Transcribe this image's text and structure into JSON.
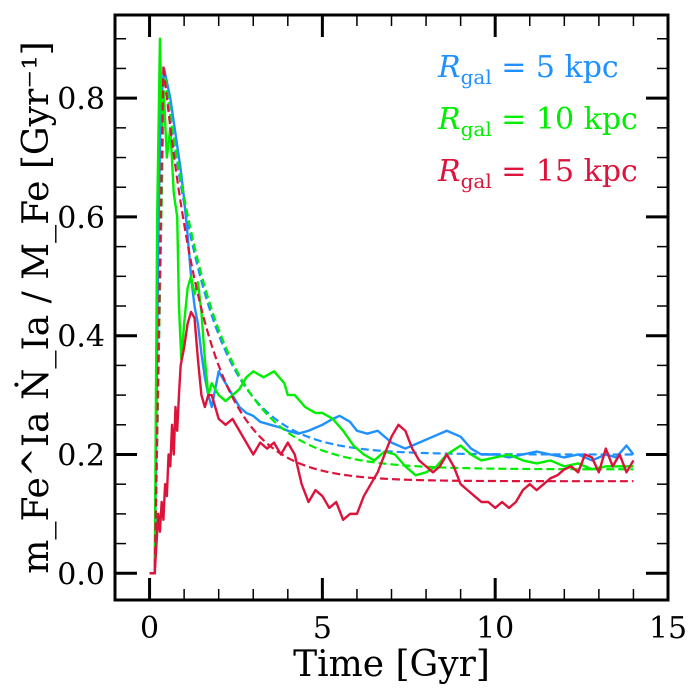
{
  "chart_data": {
    "type": "line",
    "xlabel": "Time [Gyr]",
    "ylabel": "m_Fe^Ia Ṅ_Ia / M_Fe [Gyr⁻¹]",
    "xlim": [
      -1,
      15
    ],
    "ylim": [
      -0.045,
      0.94
    ],
    "x_ticks": [
      0,
      5,
      10,
      15
    ],
    "x_tick_labels": [
      "0",
      "5",
      "10",
      "15"
    ],
    "y_ticks": [
      0.0,
      0.2,
      0.4,
      0.6,
      0.8
    ],
    "y_tick_labels": [
      "0.0",
      "0.2",
      "0.4",
      "0.6",
      "0.8"
    ],
    "x_minor_step": 1,
    "y_minor_step": 0.05,
    "legend_position": "top-right",
    "series": [
      {
        "name": "R_gal = 5 kpc",
        "legend": {
          "symbol": "R",
          "subscript": "gal",
          "rest": " = 5 kpc"
        },
        "color": "#1e90ff",
        "model": {
          "onset": 0.15,
          "peak_t": 0.42,
          "peak": 0.85,
          "tau": 1.35,
          "floor": 0.2
        },
        "solid": [
          [
            0,
            0
          ],
          [
            0.15,
            0
          ],
          [
            0.25,
            0.55
          ],
          [
            0.32,
            0.78
          ],
          [
            0.42,
            0.85
          ],
          [
            0.6,
            0.8
          ],
          [
            0.8,
            0.72
          ],
          [
            0.9,
            0.68
          ],
          [
            1.0,
            0.63
          ],
          [
            1.1,
            0.57
          ],
          [
            1.2,
            0.5
          ],
          [
            1.3,
            0.45
          ],
          [
            1.4,
            0.42
          ],
          [
            1.5,
            0.37
          ],
          [
            1.6,
            0.33
          ],
          [
            1.7,
            0.3
          ],
          [
            1.8,
            0.28
          ],
          [
            2.0,
            0.34
          ],
          [
            2.2,
            0.32
          ],
          [
            2.4,
            0.3
          ],
          [
            2.6,
            0.28
          ],
          [
            2.8,
            0.27
          ],
          [
            3.0,
            0.265
          ],
          [
            3.2,
            0.255
          ],
          [
            3.5,
            0.25
          ],
          [
            3.8,
            0.245
          ],
          [
            4.0,
            0.24
          ],
          [
            4.3,
            0.235
          ],
          [
            4.6,
            0.24
          ],
          [
            5.0,
            0.25
          ],
          [
            5.3,
            0.26
          ],
          [
            5.5,
            0.265
          ],
          [
            5.8,
            0.255
          ],
          [
            6.0,
            0.24
          ],
          [
            6.3,
            0.235
          ],
          [
            6.6,
            0.24
          ],
          [
            7.0,
            0.22
          ],
          [
            7.4,
            0.21
          ],
          [
            7.8,
            0.22
          ],
          [
            8.2,
            0.23
          ],
          [
            8.6,
            0.24
          ],
          [
            8.8,
            0.235
          ],
          [
            9.0,
            0.23
          ],
          [
            9.3,
            0.21
          ],
          [
            9.6,
            0.2
          ],
          [
            10.0,
            0.2
          ],
          [
            10.4,
            0.195
          ],
          [
            10.8,
            0.2
          ],
          [
            11.2,
            0.205
          ],
          [
            11.6,
            0.2
          ],
          [
            12.0,
            0.195
          ],
          [
            12.4,
            0.2
          ],
          [
            12.8,
            0.19
          ],
          [
            13.2,
            0.2
          ],
          [
            13.5,
            0.195
          ],
          [
            13.8,
            0.215
          ],
          [
            14.0,
            0.2
          ]
        ]
      },
      {
        "name": "R_gal = 10 kpc",
        "legend": {
          "symbol": "R",
          "subscript": "gal",
          "rest": " = 10 kpc"
        },
        "color": "#00ee00",
        "model": {
          "onset": 0.15,
          "peak_t": 0.42,
          "peak": 0.85,
          "tau": 1.5,
          "floor": 0.175
        },
        "solid": [
          [
            0,
            0
          ],
          [
            0.15,
            0
          ],
          [
            0.22,
            0.6
          ],
          [
            0.3,
            0.9
          ],
          [
            0.36,
            0.75
          ],
          [
            0.42,
            0.8
          ],
          [
            0.5,
            0.7
          ],
          [
            0.6,
            0.75
          ],
          [
            0.7,
            0.64
          ],
          [
            0.8,
            0.6
          ],
          [
            0.85,
            0.45
          ],
          [
            0.92,
            0.36
          ],
          [
            1.0,
            0.42
          ],
          [
            1.1,
            0.48
          ],
          [
            1.2,
            0.5
          ],
          [
            1.3,
            0.47
          ],
          [
            1.4,
            0.49
          ],
          [
            1.5,
            0.44
          ],
          [
            1.6,
            0.36
          ],
          [
            1.7,
            0.3
          ],
          [
            1.8,
            0.32
          ],
          [
            2.0,
            0.3
          ],
          [
            2.2,
            0.29
          ],
          [
            2.4,
            0.3
          ],
          [
            2.6,
            0.31
          ],
          [
            2.8,
            0.33
          ],
          [
            3.0,
            0.34
          ],
          [
            3.3,
            0.33
          ],
          [
            3.6,
            0.34
          ],
          [
            3.9,
            0.32
          ],
          [
            4.0,
            0.3
          ],
          [
            4.2,
            0.3
          ],
          [
            4.5,
            0.28
          ],
          [
            4.8,
            0.27
          ],
          [
            5.0,
            0.27
          ],
          [
            5.3,
            0.26
          ],
          [
            5.6,
            0.24
          ],
          [
            5.9,
            0.215
          ],
          [
            6.2,
            0.2
          ],
          [
            6.5,
            0.19
          ],
          [
            6.8,
            0.205
          ],
          [
            7.1,
            0.2
          ],
          [
            7.4,
            0.18
          ],
          [
            7.7,
            0.165
          ],
          [
            8.0,
            0.17
          ],
          [
            8.3,
            0.18
          ],
          [
            8.6,
            0.2
          ],
          [
            9.0,
            0.215
          ],
          [
            9.3,
            0.2
          ],
          [
            9.6,
            0.19
          ],
          [
            10.0,
            0.195
          ],
          [
            10.4,
            0.2
          ],
          [
            10.8,
            0.19
          ],
          [
            11.2,
            0.185
          ],
          [
            11.6,
            0.19
          ],
          [
            12.0,
            0.18
          ],
          [
            12.4,
            0.185
          ],
          [
            12.8,
            0.175
          ],
          [
            13.2,
            0.18
          ],
          [
            13.6,
            0.18
          ],
          [
            14.0,
            0.18
          ]
        ]
      },
      {
        "name": "R_gal = 15 kpc",
        "legend": {
          "symbol": "R",
          "subscript": "gal",
          "rest": " = 15 kpc"
        },
        "color": "#dc143c",
        "model": {
          "onset": 0.15,
          "peak_t": 0.4,
          "peak": 0.855,
          "tau": 1.25,
          "floor": 0.155
        },
        "solid": [
          [
            0,
            0
          ],
          [
            0.15,
            0
          ],
          [
            0.2,
            0.05
          ],
          [
            0.25,
            0.1
          ],
          [
            0.3,
            0.07
          ],
          [
            0.35,
            0.12
          ],
          [
            0.4,
            0.09
          ],
          [
            0.45,
            0.15
          ],
          [
            0.5,
            0.13
          ],
          [
            0.55,
            0.2
          ],
          [
            0.6,
            0.18
          ],
          [
            0.65,
            0.25
          ],
          [
            0.7,
            0.2
          ],
          [
            0.75,
            0.28
          ],
          [
            0.8,
            0.24
          ],
          [
            0.85,
            0.3
          ],
          [
            0.9,
            0.35
          ],
          [
            1.0,
            0.38
          ],
          [
            1.1,
            0.42
          ],
          [
            1.2,
            0.44
          ],
          [
            1.3,
            0.43
          ],
          [
            1.4,
            0.36
          ],
          [
            1.5,
            0.3
          ],
          [
            1.6,
            0.28
          ],
          [
            1.7,
            0.3
          ],
          [
            1.8,
            0.3
          ],
          [
            2.0,
            0.26
          ],
          [
            2.2,
            0.25
          ],
          [
            2.4,
            0.26
          ],
          [
            2.6,
            0.24
          ],
          [
            2.8,
            0.22
          ],
          [
            3.0,
            0.2
          ],
          [
            3.2,
            0.22
          ],
          [
            3.4,
            0.21
          ],
          [
            3.6,
            0.22
          ],
          [
            3.8,
            0.2
          ],
          [
            4.0,
            0.22
          ],
          [
            4.2,
            0.2
          ],
          [
            4.4,
            0.15
          ],
          [
            4.6,
            0.12
          ],
          [
            4.8,
            0.14
          ],
          [
            5.0,
            0.13
          ],
          [
            5.2,
            0.11
          ],
          [
            5.4,
            0.12
          ],
          [
            5.6,
            0.09
          ],
          [
            5.8,
            0.1
          ],
          [
            6.0,
            0.1
          ],
          [
            6.2,
            0.13
          ],
          [
            6.4,
            0.15
          ],
          [
            6.6,
            0.17
          ],
          [
            6.8,
            0.2
          ],
          [
            7.0,
            0.23
          ],
          [
            7.2,
            0.25
          ],
          [
            7.4,
            0.24
          ],
          [
            7.6,
            0.21
          ],
          [
            7.8,
            0.19
          ],
          [
            8.0,
            0.18
          ],
          [
            8.2,
            0.17
          ],
          [
            8.4,
            0.18
          ],
          [
            8.6,
            0.2
          ],
          [
            8.8,
            0.18
          ],
          [
            9.0,
            0.15
          ],
          [
            9.2,
            0.14
          ],
          [
            9.4,
            0.13
          ],
          [
            9.6,
            0.12
          ],
          [
            9.8,
            0.12
          ],
          [
            10.0,
            0.11
          ],
          [
            10.2,
            0.12
          ],
          [
            10.4,
            0.11
          ],
          [
            10.6,
            0.12
          ],
          [
            10.8,
            0.14
          ],
          [
            11.0,
            0.15
          ],
          [
            11.2,
            0.14
          ],
          [
            11.4,
            0.15
          ],
          [
            11.6,
            0.16
          ],
          [
            11.8,
            0.165
          ],
          [
            12.0,
            0.175
          ],
          [
            12.2,
            0.18
          ],
          [
            12.4,
            0.17
          ],
          [
            12.6,
            0.2
          ],
          [
            12.8,
            0.195
          ],
          [
            13.0,
            0.17
          ],
          [
            13.2,
            0.21
          ],
          [
            13.4,
            0.18
          ],
          [
            13.6,
            0.2
          ],
          [
            13.8,
            0.17
          ],
          [
            14.0,
            0.19
          ]
        ]
      }
    ]
  }
}
